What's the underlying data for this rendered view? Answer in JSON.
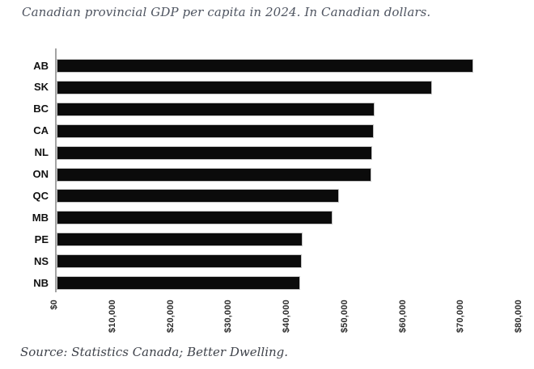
{
  "page": {
    "title": "Canadian provincial GDP per capita in 2024. In Canadian dollars.",
    "source": "Source: Statistics Canada; Better Dwelling."
  },
  "chart_data": {
    "type": "bar",
    "orientation": "horizontal",
    "title": "Canadian provincial GDP per capita in 2024. In Canadian dollars.",
    "source_note": "Source: Statistics Canada; Better Dwelling.",
    "series_name": "GDP per capita (CAD)",
    "categories": [
      "AB",
      "SK",
      "BC",
      "CA",
      "NL",
      "ON",
      "QC",
      "MB",
      "PE",
      "NS",
      "NB"
    ],
    "values": [
      71800,
      64700,
      54800,
      54700,
      54400,
      54200,
      48700,
      47500,
      42400,
      42200,
      42000
    ],
    "xlabel": "",
    "ylabel": "",
    "xlim": [
      0,
      80000
    ],
    "x_ticks": [
      {
        "label": "$0",
        "value": 0
      },
      {
        "label": "$10,000",
        "value": 10000
      },
      {
        "label": "$20,000",
        "value": 20000
      },
      {
        "label": "$30,000",
        "value": 30000
      },
      {
        "label": "$40,000",
        "value": 40000
      },
      {
        "label": "$50,000",
        "value": 50000
      },
      {
        "label": "$60,000",
        "value": 60000
      },
      {
        "label": "$70,000",
        "value": 70000
      },
      {
        "label": "$80,000",
        "value": 80000
      }
    ],
    "x_tick_rotation_deg": 90,
    "grid": false,
    "legend": false,
    "colors": {
      "bar": "#0b0b0b",
      "bar_border": "#c4c4c4",
      "axis_line": "#a3a3a3",
      "title_text": "#4e5460",
      "source_text": "#3f434b",
      "tick_text": "#2b2b2b",
      "category_text": "#111111",
      "background": "#ffffff"
    }
  }
}
